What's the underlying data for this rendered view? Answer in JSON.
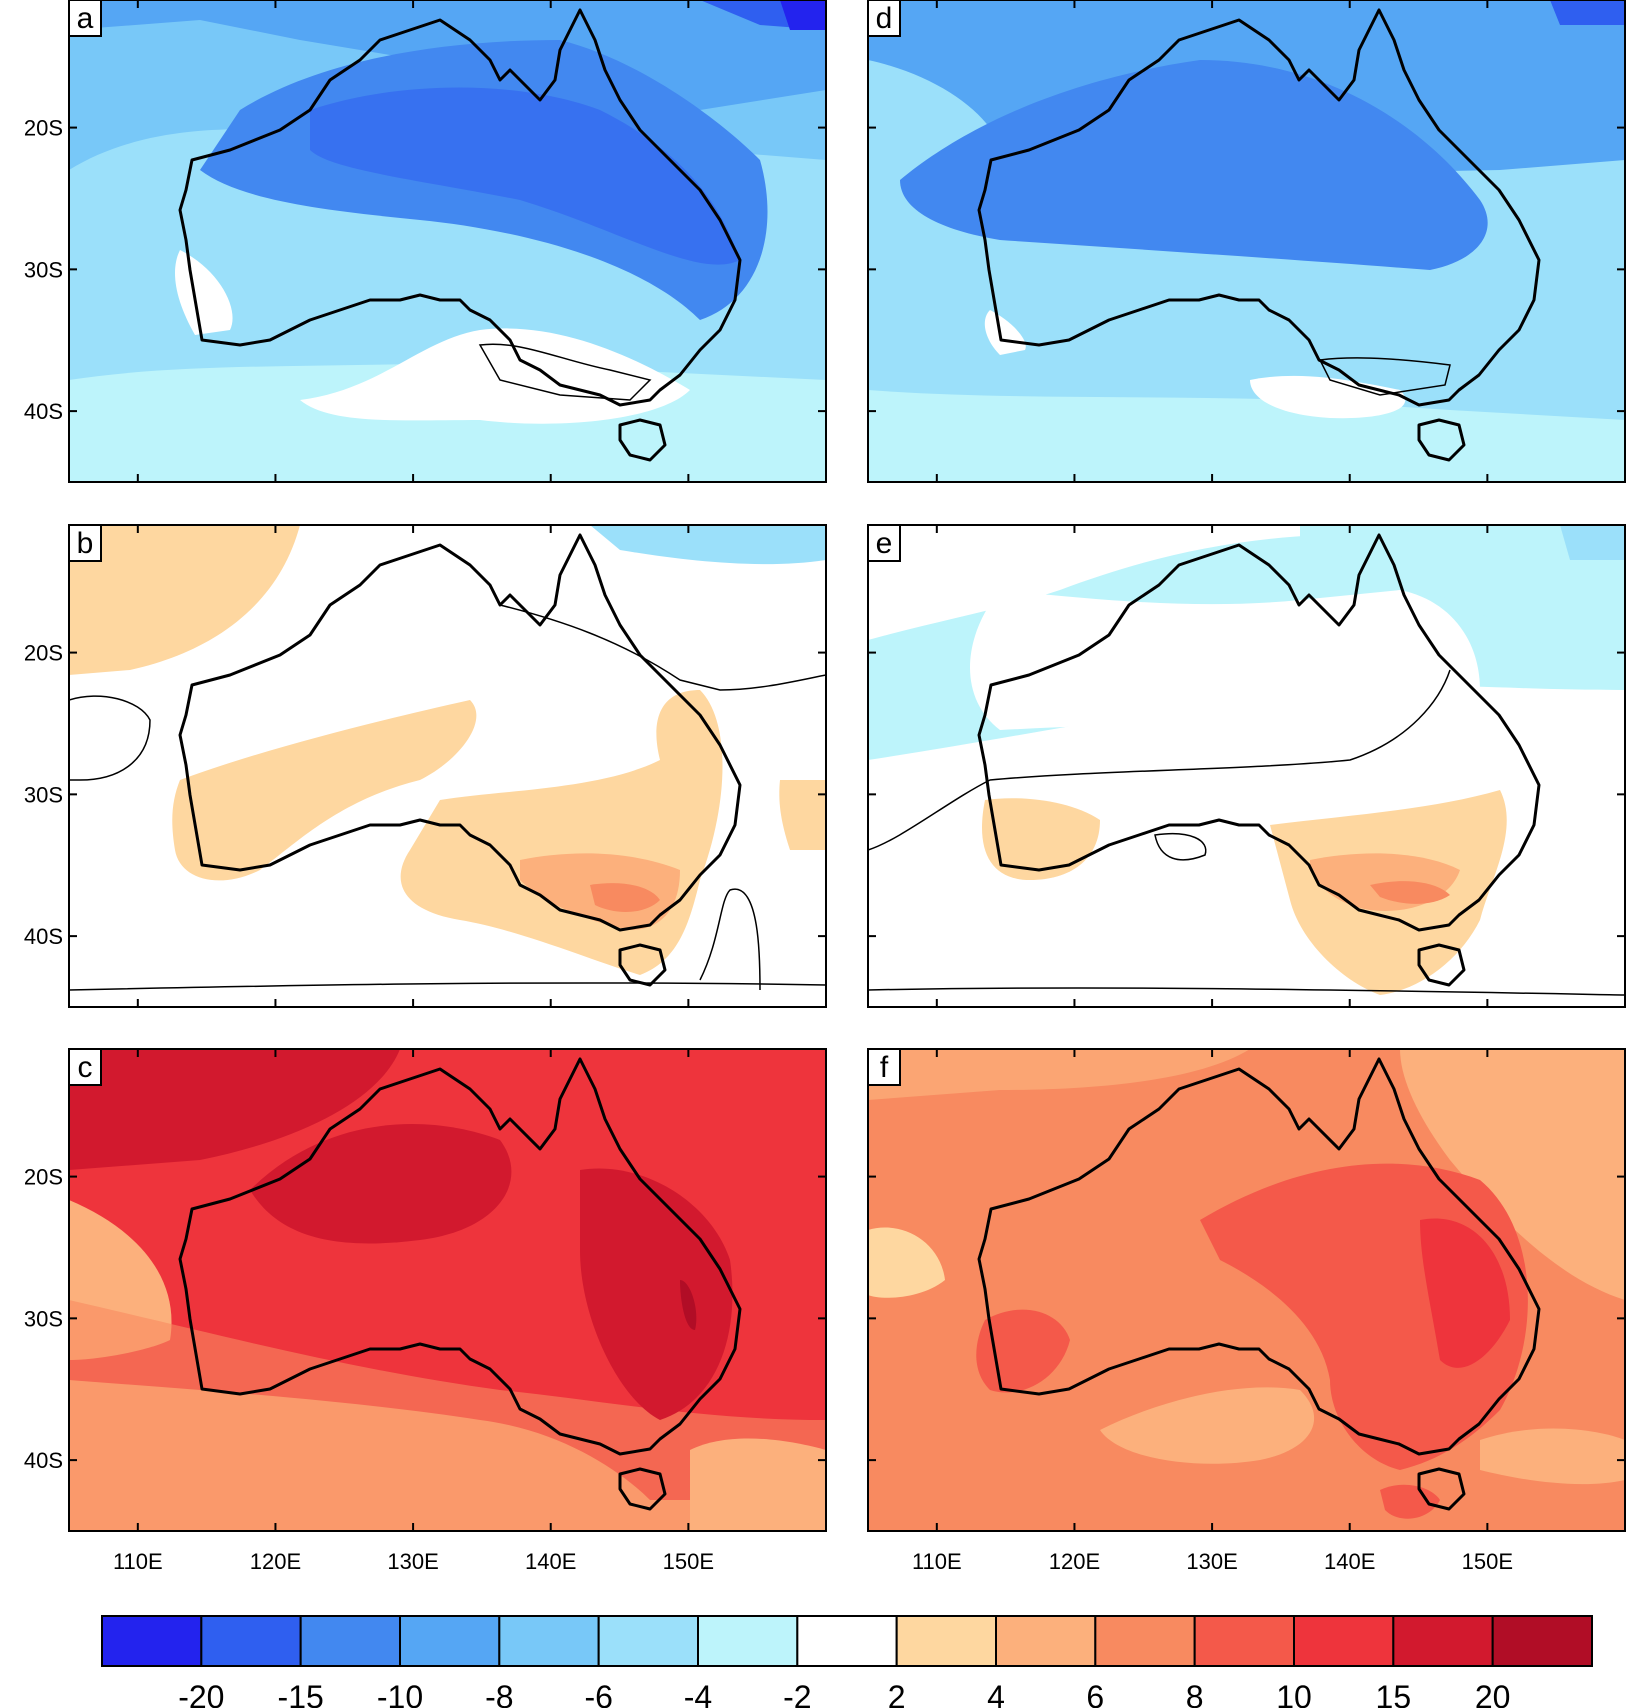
{
  "panels": [
    {
      "letter": "a",
      "field": "negative"
    },
    {
      "letter": "b",
      "field": "weak"
    },
    {
      "letter": "c",
      "field": "strong-positive"
    },
    {
      "letter": "d",
      "field": "negative"
    },
    {
      "letter": "e",
      "field": "weak-negative"
    },
    {
      "letter": "f",
      "field": "positive"
    }
  ],
  "axes": {
    "lat_ticks": [
      "20S",
      "30S",
      "40S"
    ],
    "lon_ticks": [
      "110E",
      "120E",
      "130E",
      "140E",
      "150E"
    ],
    "lat_range": [
      -45,
      -11
    ],
    "lon_range": [
      105,
      160
    ]
  },
  "colorbar": {
    "labels": [
      "-20",
      "-15",
      "-10",
      "-8",
      "-6",
      "-4",
      "-2",
      "2",
      "4",
      "6",
      "8",
      "10",
      "15",
      "20"
    ],
    "colors": [
      "#2323ee",
      "#2f5ff0",
      "#4288f0",
      "#55a6f4",
      "#78c8f8",
      "#9be0fa",
      "#bdf4fb",
      "#ffffff",
      "#fed7a0",
      "#fcb07c",
      "#f88a60",
      "#f4594a",
      "#ee343c",
      "#d2192e",
      "#b10d26"
    ]
  }
}
